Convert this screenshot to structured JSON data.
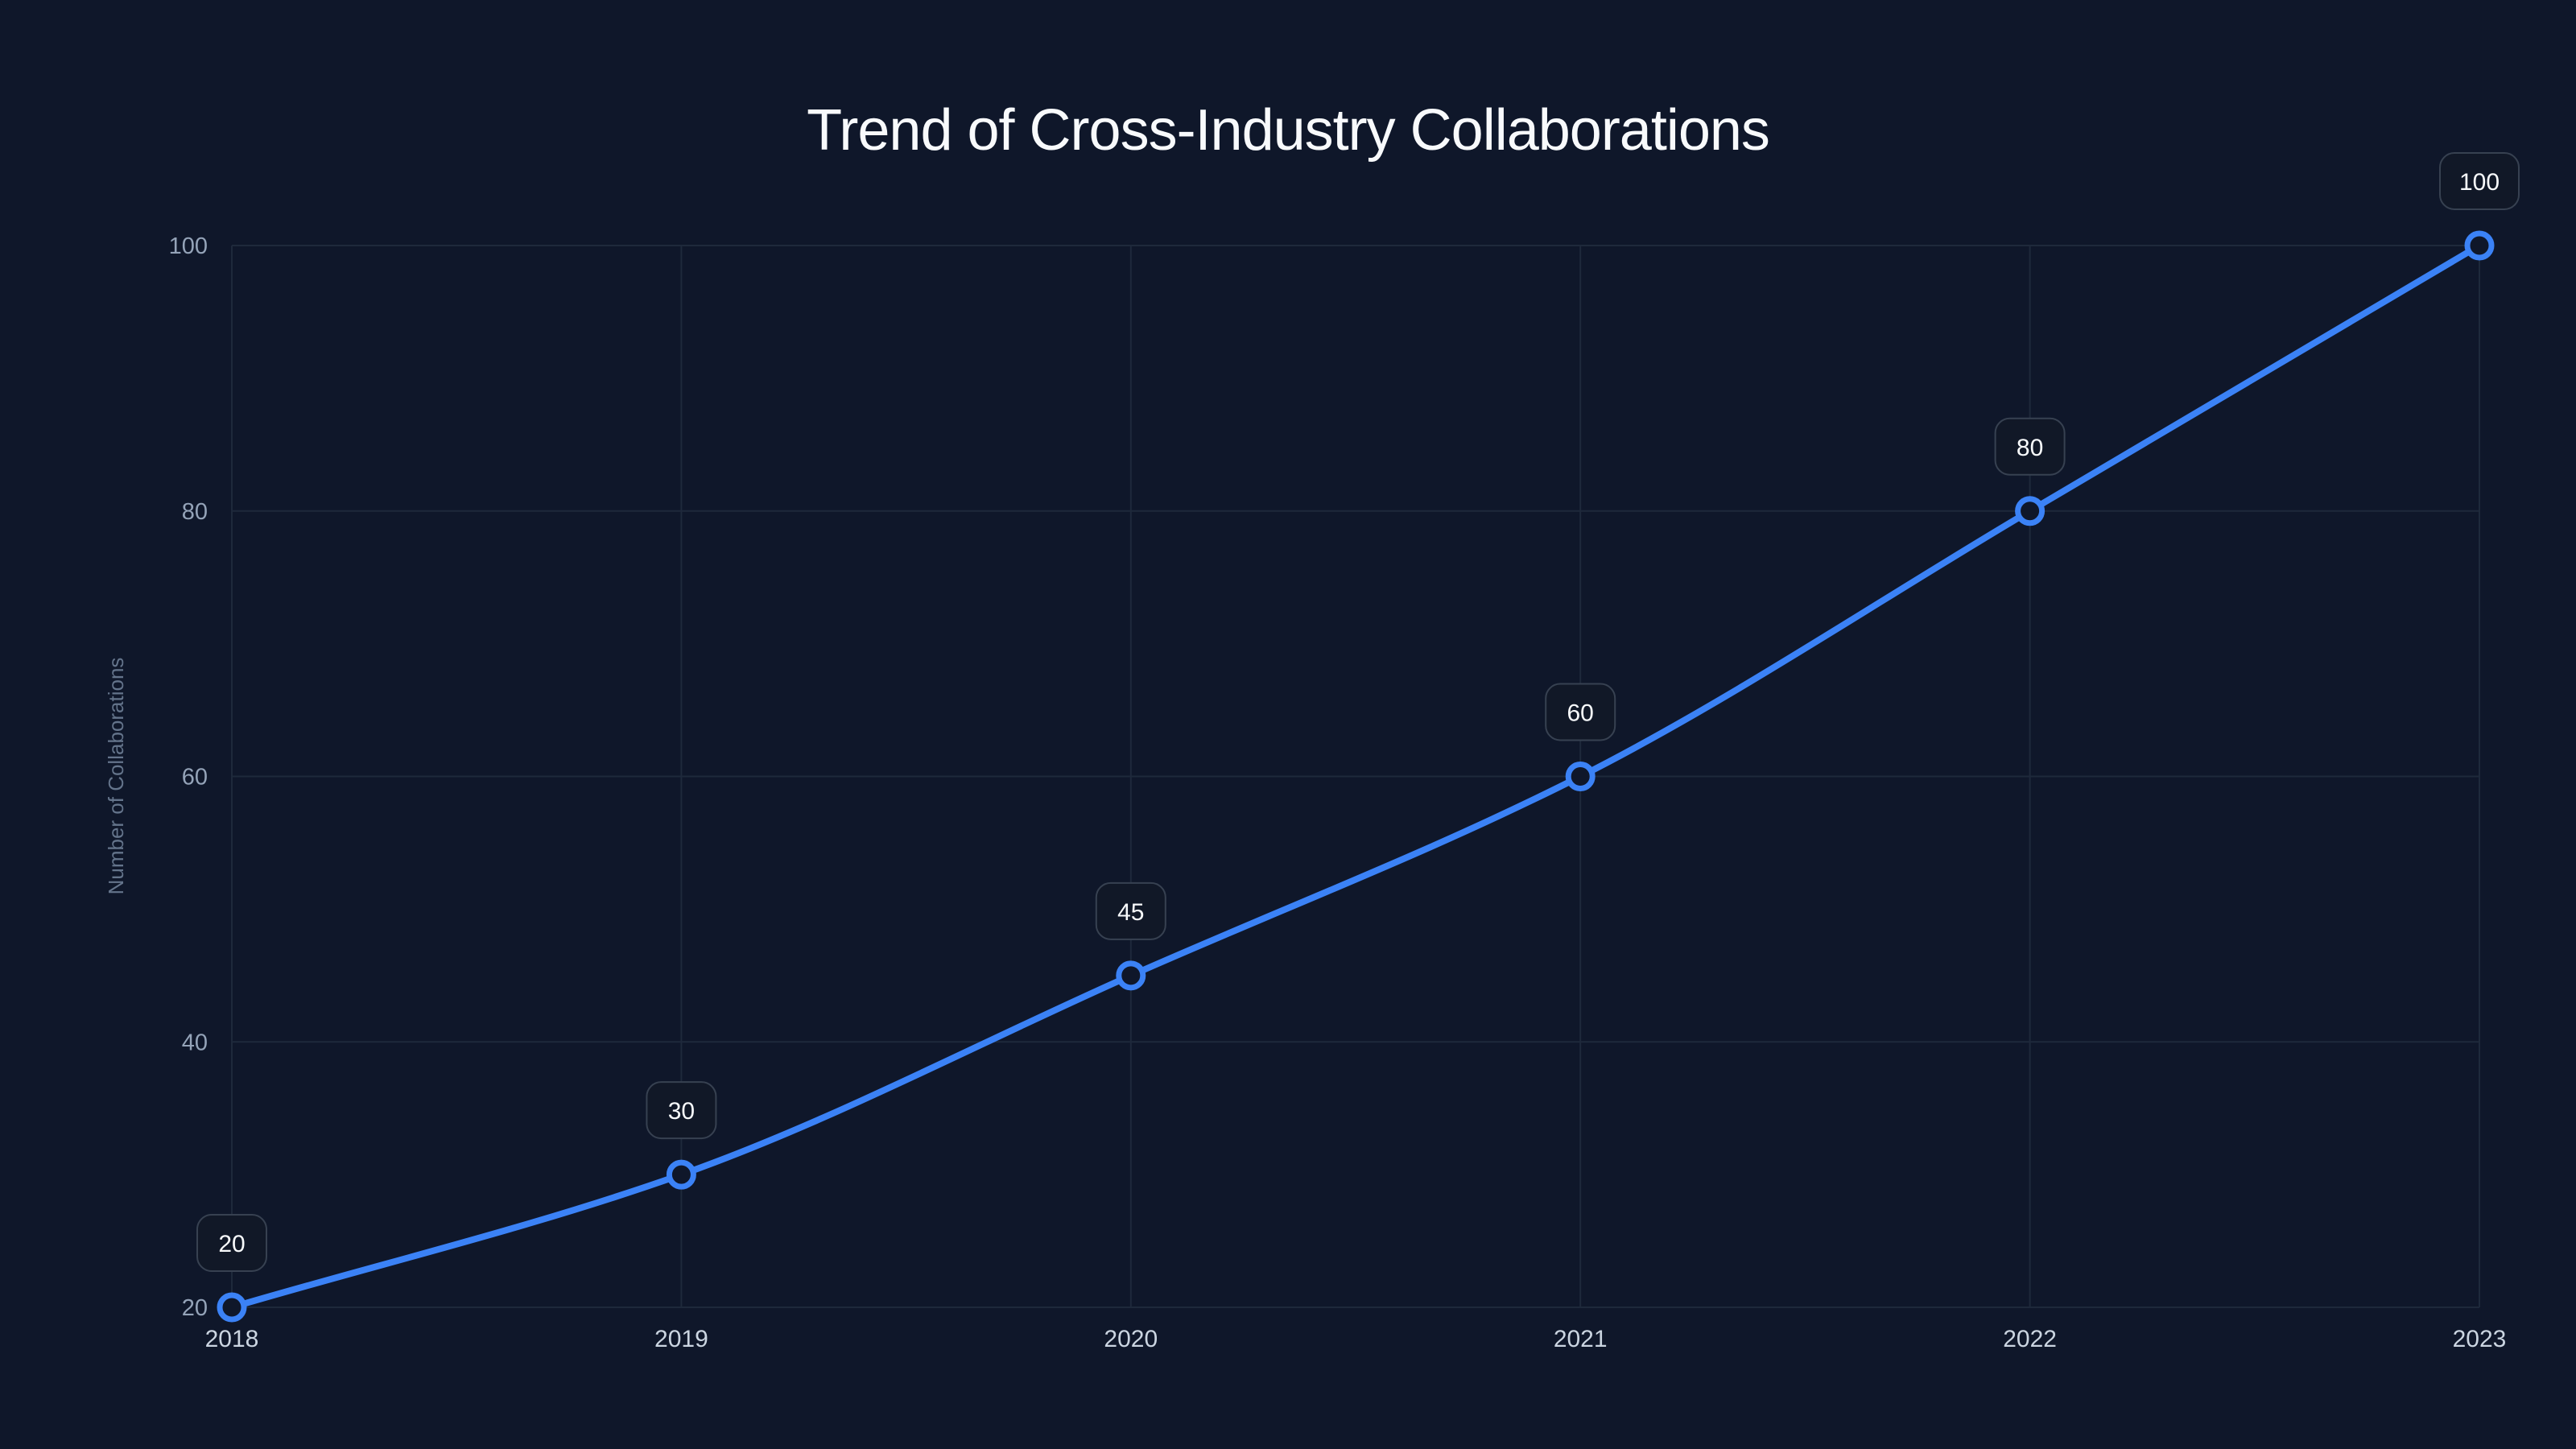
{
  "title": "Trend of Cross-Industry Collaborations",
  "colors": {
    "background": "#0f172a",
    "line": "#3b82f6",
    "grid": "#1e293b",
    "label_box_bg": "#111827",
    "label_box_border": "#374151",
    "title": "#f8fafc",
    "ytick": "#94a3b8",
    "xtick": "#cbd5e1",
    "ylabel": "#64748b"
  },
  "chart_data": {
    "type": "line",
    "title": "Trend of Cross-Industry Collaborations",
    "xlabel": "",
    "ylabel": "Number of Collaborations",
    "categories": [
      "2018",
      "2019",
      "2020",
      "2021",
      "2022",
      "2023"
    ],
    "series": [
      {
        "name": "Number of Collaborations",
        "values": [
          20,
          30,
          45,
          60,
          80,
          100
        ]
      }
    ],
    "ylim": [
      20,
      100
    ],
    "yticks": [
      20,
      40,
      60,
      80,
      100
    ],
    "grid": true,
    "legend": "none",
    "data_labels": true,
    "smooth": true
  }
}
